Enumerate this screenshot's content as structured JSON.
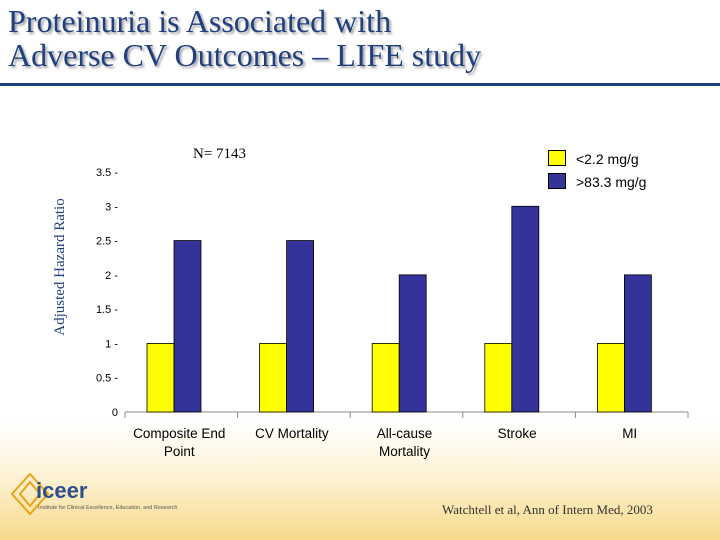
{
  "slide": {
    "title_line1": "Proteinuria is Associated with",
    "title_line2": "Adverse CV Outcomes – LIFE study",
    "n_label": "N= 7143",
    "citation": "Watchtell et al, Ann of Intern Med, 2003"
  },
  "logo": {
    "name": "iceer",
    "tagline": "Institute for Clinical Excellence, Education, and Research"
  },
  "colors": {
    "title": "#1f3f7f",
    "series_low": "#ffff00",
    "series_high": "#333399"
  },
  "chart_data": {
    "type": "bar",
    "title": "",
    "xlabel": "",
    "ylabel": "Adjusted Hazard Ratio",
    "ylim": [
      0,
      3.5
    ],
    "yticks": [
      "0",
      "0.5 -",
      "1 -",
      "1.5 -",
      "2 -",
      "2.5 -",
      "3 -",
      "3.5 -"
    ],
    "ytick_values": [
      0,
      0.5,
      1,
      1.5,
      2,
      2.5,
      3,
      3.5
    ],
    "grid": false,
    "legend_position": "top-right",
    "categories": [
      [
        "Composite End",
        "Point"
      ],
      [
        "CV Mortality"
      ],
      [
        "All-cause",
        "Mortality"
      ],
      [
        "Stroke"
      ],
      [
        "MI"
      ]
    ],
    "series": [
      {
        "name": "<2.2 mg/g",
        "color": "#ffff00",
        "values": [
          1,
          1,
          1,
          1,
          1
        ]
      },
      {
        "name": ">83.3 mg/g",
        "color": "#333399",
        "values": [
          2.5,
          2.5,
          2,
          3,
          2
        ]
      }
    ]
  }
}
